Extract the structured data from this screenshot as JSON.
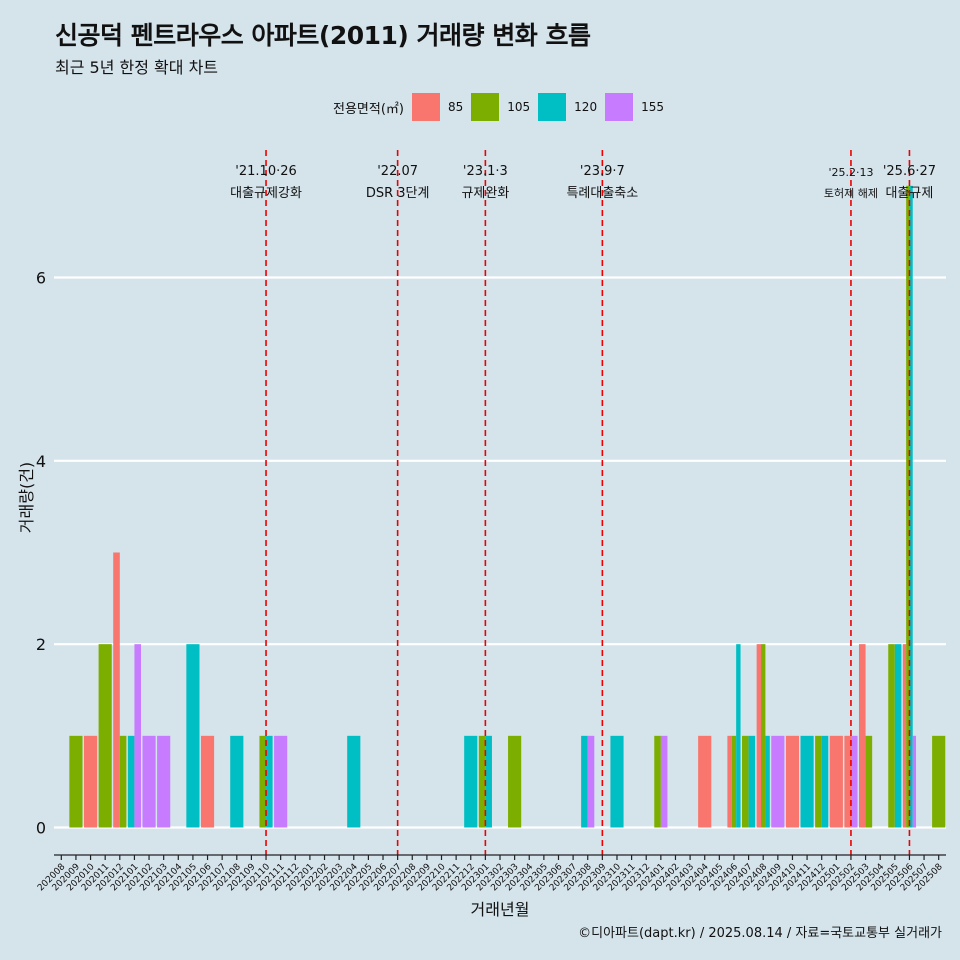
{
  "title": "신공덕 펜트라우스 아파트(2011) 거래량 변화 흐름",
  "subtitle": "최근 5년 한정 확대 차트",
  "footer": "©디아파트(dapt.kr) / 2025.08.14 / 자료=국토교통부 실거래가",
  "chart_data": {
    "type": "bar",
    "stacking": "dodge",
    "xlabel": "거래년월",
    "ylabel": "거래량(건)",
    "ylim": [
      -0.3,
      7.5
    ],
    "yticks": [
      0,
      2,
      4,
      6
    ],
    "legend": {
      "title": "전용면적(㎡)",
      "position": "top",
      "entries": [
        {
          "name": "85",
          "color": "#f8766d"
        },
        {
          "name": "105",
          "color": "#7cae00"
        },
        {
          "name": "120",
          "color": "#00bfc4"
        },
        {
          "name": "155",
          "color": "#c77cff"
        }
      ]
    },
    "categories": [
      "202008",
      "202009",
      "202010",
      "202011",
      "202012",
      "202101",
      "202102",
      "202103",
      "202104",
      "202105",
      "202106",
      "202107",
      "202108",
      "202109",
      "202110",
      "202111",
      "202112",
      "202201",
      "202202",
      "202203",
      "202204",
      "202205",
      "202206",
      "202207",
      "202208",
      "202209",
      "202210",
      "202211",
      "202212",
      "202301",
      "202302",
      "202303",
      "202304",
      "202305",
      "202306",
      "202307",
      "202308",
      "202309",
      "202310",
      "202311",
      "202312",
      "202401",
      "202402",
      "202403",
      "202404",
      "202405",
      "202406",
      "202407",
      "202408",
      "202409",
      "202410",
      "202411",
      "202412",
      "202501",
      "202502",
      "202503",
      "202504",
      "202505",
      "202506",
      "202507",
      "202508"
    ],
    "bars": [
      {
        "month": "202009",
        "series": [
          "105"
        ],
        "values": [
          1
        ]
      },
      {
        "month": "202010",
        "series": [
          "85"
        ],
        "values": [
          1
        ]
      },
      {
        "month": "202011",
        "series": [
          "105"
        ],
        "values": [
          2
        ]
      },
      {
        "month": "202012",
        "series": [
          "85",
          "105"
        ],
        "values": [
          3,
          1
        ]
      },
      {
        "month": "202101",
        "series": [
          "120",
          "155"
        ],
        "values": [
          1,
          2
        ]
      },
      {
        "month": "202102",
        "series": [
          "155"
        ],
        "values": [
          1
        ]
      },
      {
        "month": "202103",
        "series": [
          "155"
        ],
        "values": [
          1
        ]
      },
      {
        "month": "202105",
        "series": [
          "120"
        ],
        "values": [
          2
        ]
      },
      {
        "month": "202106",
        "series": [
          "85"
        ],
        "values": [
          1
        ]
      },
      {
        "month": "202108",
        "series": [
          "120"
        ],
        "values": [
          1
        ]
      },
      {
        "month": "202110",
        "series": [
          "105",
          "120"
        ],
        "values": [
          1,
          1
        ]
      },
      {
        "month": "202111",
        "series": [
          "155"
        ],
        "values": [
          1
        ]
      },
      {
        "month": "202204",
        "series": [
          "120"
        ],
        "values": [
          1
        ]
      },
      {
        "month": "202212",
        "series": [
          "120"
        ],
        "values": [
          1
        ]
      },
      {
        "month": "202301",
        "series": [
          "105",
          "120"
        ],
        "values": [
          1,
          1
        ]
      },
      {
        "month": "202303",
        "series": [
          "105"
        ],
        "values": [
          1
        ]
      },
      {
        "month": "202308",
        "series": [
          "120",
          "155"
        ],
        "values": [
          1,
          1
        ]
      },
      {
        "month": "202310",
        "series": [
          "120"
        ],
        "values": [
          1
        ]
      },
      {
        "month": "202401",
        "series": [
          "105",
          "155"
        ],
        "values": [
          1,
          1
        ]
      },
      {
        "month": "202404",
        "series": [
          "85"
        ],
        "values": [
          1
        ]
      },
      {
        "month": "202406",
        "series": [
          "85",
          "105",
          "120"
        ],
        "values": [
          1,
          1,
          2
        ]
      },
      {
        "month": "202407",
        "series": [
          "105",
          "120"
        ],
        "values": [
          1,
          1
        ]
      },
      {
        "month": "202408",
        "series": [
          "85",
          "105",
          "120"
        ],
        "values": [
          2,
          2,
          1
        ]
      },
      {
        "month": "202409",
        "series": [
          "155"
        ],
        "values": [
          1
        ]
      },
      {
        "month": "202410",
        "series": [
          "85"
        ],
        "values": [
          1
        ]
      },
      {
        "month": "202411",
        "series": [
          "120"
        ],
        "values": [
          1
        ]
      },
      {
        "month": "202412",
        "series": [
          "105",
          "120"
        ],
        "values": [
          1,
          1
        ]
      },
      {
        "month": "202501",
        "series": [
          "85"
        ],
        "values": [
          1
        ]
      },
      {
        "month": "202502",
        "series": [
          "85",
          "155"
        ],
        "values": [
          1,
          1
        ]
      },
      {
        "month": "202503",
        "series": [
          "85",
          "105"
        ],
        "values": [
          2,
          1
        ]
      },
      {
        "month": "202505",
        "series": [
          "105",
          "120"
        ],
        "values": [
          2,
          2
        ]
      },
      {
        "month": "202506",
        "series": [
          "85",
          "105",
          "120",
          "155"
        ],
        "values": [
          2,
          7,
          7,
          1
        ]
      },
      {
        "month": "202508",
        "series": [
          "105"
        ],
        "values": [
          1
        ]
      }
    ],
    "annotations": [
      {
        "month": "202110",
        "label1": "'21.10·26",
        "label2": "대출규제강화"
      },
      {
        "month": "202207",
        "label1": "'22.07",
        "label2": "DSR 3단계"
      },
      {
        "month": "202301",
        "label1": "'23.1·3",
        "label2": "규제완화"
      },
      {
        "month": "202309",
        "label1": "'23.9·7",
        "label2": "특례대출축소"
      },
      {
        "month": "202502",
        "label1": "'25.2·13",
        "label2": "토허제 해제"
      },
      {
        "month": "202506",
        "label1": "'25.6·27",
        "label2": "대출규제"
      }
    ]
  }
}
